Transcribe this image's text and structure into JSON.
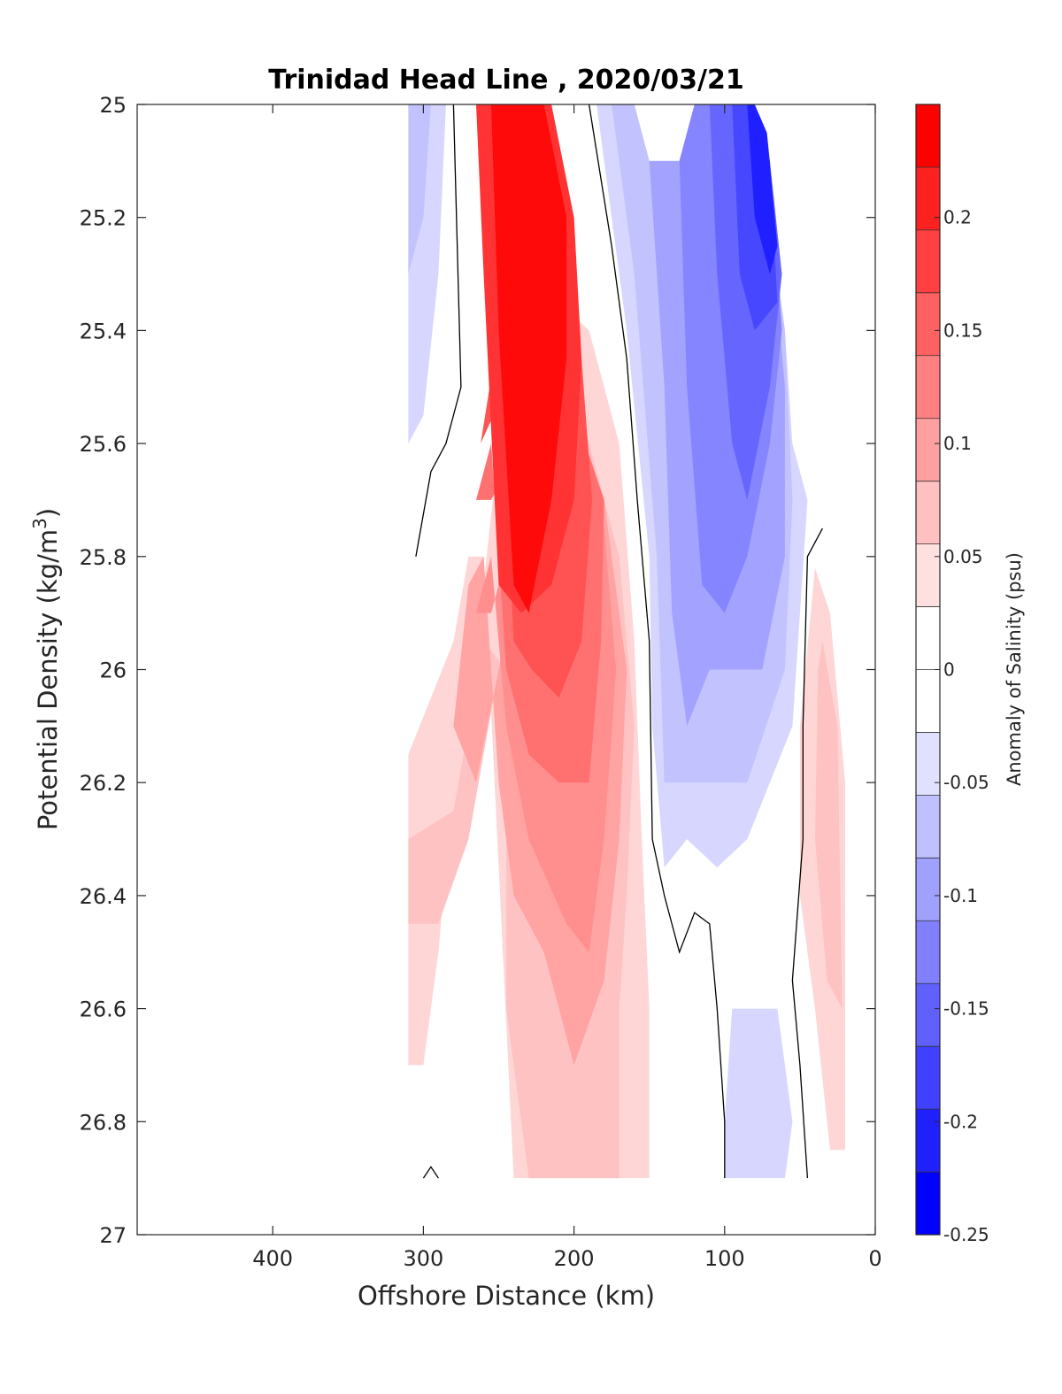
{
  "chart_data": {
    "type": "contour",
    "title": "Trinidad Head Line , 2020/03/21",
    "xlabel": "Offshore Distance (km)",
    "ylabel_main": "Potential Density (kg/m",
    "ylabel_sup": "3",
    "ylabel_close": ")",
    "colorbar_label": "Anomaly of Salinity (psu)",
    "x_reversed": true,
    "xlim": [
      0,
      490
    ],
    "ylim": [
      25,
      27
    ],
    "y_reversed": true,
    "x_ticks": [
      400,
      300,
      200,
      100,
      0
    ],
    "x_tick_labels": [
      "400",
      "300",
      "200",
      "100",
      "0"
    ],
    "y_ticks": [
      25,
      25.2,
      25.4,
      25.6,
      25.8,
      26,
      26.2,
      26.4,
      26.6,
      26.8,
      27
    ],
    "y_tick_labels": [
      "25",
      "25.2",
      "25.4",
      "25.6",
      "25.8",
      "26",
      "26.2",
      "26.4",
      "26.6",
      "26.8",
      "27"
    ],
    "colorbar_range": [
      -0.25,
      0.25
    ],
    "colorbar_ticks": [
      0.2,
      0.15,
      0.1,
      0.05,
      0,
      -0.05,
      -0.1,
      -0.15,
      -0.2,
      -0.25
    ],
    "colorbar_tick_labels": [
      "0.2",
      "0.15",
      "0.1",
      "0.05",
      "0",
      "-0.05",
      "-0.1",
      "-0.15",
      "-0.2",
      "-0.25"
    ],
    "colorbar_colors": [
      "#ff0000",
      "#ff2020",
      "#ff4040",
      "#ff6060",
      "#ff8080",
      "#ffa0a0",
      "#ffc0c0",
      "#ffe0e0",
      "#ffffff",
      "#ffffff",
      "#e0e0ff",
      "#c0c0ff",
      "#a0a0ff",
      "#8080ff",
      "#6060ff",
      "#4040ff",
      "#2020ff",
      "#0000ff"
    ],
    "regions": [
      {
        "anomaly": 0.04,
        "points": [
          [
            310,
            26.7
          ],
          [
            310,
            26.15
          ],
          [
            280,
            25.95
          ],
          [
            270,
            25.8
          ],
          [
            260,
            25.8
          ],
          [
            240,
            26.9
          ],
          [
            150,
            26.9
          ],
          [
            150,
            26.6
          ],
          [
            155,
            26.3
          ],
          [
            160,
            25.95
          ],
          [
            170,
            25.6
          ],
          [
            190,
            25.4
          ],
          [
            230,
            25.3
          ],
          [
            250,
            25.6
          ],
          [
            270,
            26.1
          ],
          [
            285,
            26.35
          ],
          [
            290,
            26.5
          ],
          [
            300,
            26.7
          ]
        ]
      },
      {
        "anomaly": 0.04,
        "points": [
          [
            40,
            25.82
          ],
          [
            30,
            25.9
          ],
          [
            20,
            26.2
          ],
          [
            20,
            26.85
          ],
          [
            30,
            26.85
          ],
          [
            40,
            26.6
          ],
          [
            50,
            26.4
          ],
          [
            50,
            26.1
          ]
        ]
      },
      {
        "anomaly": 0.06,
        "points": [
          [
            310,
            26.3
          ],
          [
            280,
            26.25
          ],
          [
            270,
            26.1
          ],
          [
            260,
            25.95
          ],
          [
            245,
            26.0
          ],
          [
            245,
            26.6
          ],
          [
            230,
            26.9
          ],
          [
            170,
            26.9
          ],
          [
            170,
            26.6
          ],
          [
            165,
            26.4
          ],
          [
            160,
            26.1
          ],
          [
            170,
            25.8
          ],
          [
            200,
            25.5
          ],
          [
            230,
            25.6
          ],
          [
            250,
            26.0
          ],
          [
            270,
            26.3
          ],
          [
            290,
            26.45
          ],
          [
            310,
            26.45
          ]
        ]
      },
      {
        "anomaly": 0.06,
        "points": [
          [
            35,
            25.95
          ],
          [
            25,
            26.1
          ],
          [
            22,
            26.6
          ],
          [
            32,
            26.55
          ],
          [
            40,
            26.3
          ],
          [
            38,
            26.0
          ]
        ]
      },
      {
        "anomaly": 0.09,
        "points": [
          [
            280,
            26.1
          ],
          [
            270,
            25.85
          ],
          [
            260,
            25.8
          ],
          [
            250,
            26.2
          ],
          [
            240,
            26.4
          ],
          [
            220,
            26.5
          ],
          [
            200,
            26.7
          ],
          [
            180,
            26.55
          ],
          [
            170,
            26.3
          ],
          [
            165,
            26.0
          ],
          [
            180,
            25.7
          ],
          [
            200,
            25.55
          ],
          [
            230,
            25.7
          ],
          [
            250,
            26.0
          ],
          [
            265,
            26.2
          ]
        ]
      },
      {
        "anomaly": 0.11,
        "points": [
          [
            265,
            25.9
          ],
          [
            255,
            25.8
          ],
          [
            245,
            26.1
          ],
          [
            230,
            26.3
          ],
          [
            205,
            26.45
          ],
          [
            190,
            26.5
          ],
          [
            180,
            26.3
          ],
          [
            172,
            26.0
          ],
          [
            180,
            25.75
          ],
          [
            205,
            25.55
          ],
          [
            235,
            25.7
          ],
          [
            255,
            25.9
          ]
        ]
      },
      {
        "anomaly": 0.14,
        "points": [
          [
            265,
            25.7
          ],
          [
            255,
            25.6
          ],
          [
            245,
            26.0
          ],
          [
            230,
            26.15
          ],
          [
            210,
            26.2
          ],
          [
            190,
            26.2
          ],
          [
            182,
            25.95
          ],
          [
            180,
            25.7
          ],
          [
            205,
            25.5
          ],
          [
            235,
            25.6
          ],
          [
            255,
            25.7
          ]
        ]
      },
      {
        "anomaly": 0.17,
        "points": [
          [
            262,
            25.6
          ],
          [
            250,
            25.4
          ],
          [
            240,
            25.95
          ],
          [
            228,
            26.0
          ],
          [
            210,
            26.05
          ],
          [
            195,
            25.95
          ],
          [
            188,
            25.7
          ],
          [
            195,
            25.45
          ],
          [
            220,
            25.4
          ],
          [
            245,
            25.5
          ]
        ]
      },
      {
        "anomaly": 0.2,
        "points": [
          [
            265,
            25.0
          ],
          [
            260,
            25.3
          ],
          [
            250,
            25.85
          ],
          [
            235,
            25.9
          ],
          [
            215,
            25.85
          ],
          [
            200,
            25.7
          ],
          [
            195,
            25.45
          ],
          [
            200,
            25.2
          ],
          [
            215,
            25.0
          ]
        ]
      },
      {
        "anomaly": 0.24,
        "points": [
          [
            255,
            25.0
          ],
          [
            250,
            25.4
          ],
          [
            240,
            25.85
          ],
          [
            230,
            25.9
          ],
          [
            215,
            25.7
          ],
          [
            205,
            25.45
          ],
          [
            205,
            25.2
          ],
          [
            220,
            25.0
          ]
        ]
      },
      {
        "anomaly": -0.04,
        "points": [
          [
            310,
            25.0
          ],
          [
            310,
            25.6
          ],
          [
            300,
            25.55
          ],
          [
            290,
            25.3
          ],
          [
            285,
            25.0
          ]
        ]
      },
      {
        "anomaly": -0.06,
        "points": [
          [
            310,
            25.0
          ],
          [
            310,
            25.3
          ],
          [
            300,
            25.2
          ],
          [
            295,
            25.0
          ]
        ]
      },
      {
        "anomaly": -0.04,
        "points": [
          [
            185,
            25.0
          ],
          [
            165,
            25.4
          ],
          [
            150,
            25.8
          ],
          [
            148,
            26.1
          ],
          [
            140,
            26.35
          ],
          [
            125,
            26.3
          ],
          [
            105,
            26.35
          ],
          [
            85,
            26.3
          ],
          [
            55,
            26.1
          ],
          [
            45,
            25.7
          ],
          [
            55,
            25.6
          ],
          [
            60,
            25.4
          ],
          [
            75,
            25.1
          ],
          [
            90,
            25.0
          ],
          [
            120,
            25.0
          ],
          [
            130,
            25.1
          ],
          [
            150,
            25.1
          ],
          [
            160,
            25.0
          ]
        ]
      },
      {
        "anomaly": -0.06,
        "points": [
          [
            175,
            25.0
          ],
          [
            160,
            25.3
          ],
          [
            145,
            25.8
          ],
          [
            140,
            26.2
          ],
          [
            125,
            26.2
          ],
          [
            105,
            26.2
          ],
          [
            85,
            26.2
          ],
          [
            60,
            26.0
          ],
          [
            55,
            25.7
          ],
          [
            60,
            25.4
          ],
          [
            75,
            25.1
          ],
          [
            90,
            25.0
          ],
          [
            120,
            25.0
          ],
          [
            130,
            25.1
          ],
          [
            150,
            25.1
          ],
          [
            160,
            25.0
          ]
        ]
      },
      {
        "anomaly": -0.09,
        "points": [
          [
            150,
            25.1
          ],
          [
            140,
            25.5
          ],
          [
            135,
            25.9
          ],
          [
            125,
            26.1
          ],
          [
            110,
            26.0
          ],
          [
            95,
            26.0
          ],
          [
            75,
            26.0
          ],
          [
            60,
            25.8
          ],
          [
            60,
            25.5
          ],
          [
            70,
            25.2
          ],
          [
            85,
            25.0
          ],
          [
            120,
            25.0
          ],
          [
            130,
            25.1
          ]
        ]
      },
      {
        "anomaly": -0.12,
        "points": [
          [
            130,
            25.1
          ],
          [
            125,
            25.5
          ],
          [
            115,
            25.85
          ],
          [
            100,
            25.9
          ],
          [
            85,
            25.8
          ],
          [
            70,
            25.6
          ],
          [
            62,
            25.4
          ],
          [
            70,
            25.1
          ],
          [
            85,
            25.0
          ],
          [
            120,
            25.0
          ]
        ]
      },
      {
        "anomaly": -0.15,
        "points": [
          [
            110,
            25.0
          ],
          [
            105,
            25.3
          ],
          [
            95,
            25.6
          ],
          [
            85,
            25.7
          ],
          [
            70,
            25.5
          ],
          [
            62,
            25.3
          ],
          [
            72,
            25.05
          ],
          [
            85,
            25.0
          ]
        ]
      },
      {
        "anomaly": -0.18,
        "points": [
          [
            95,
            25.0
          ],
          [
            90,
            25.3
          ],
          [
            80,
            25.4
          ],
          [
            65,
            25.35
          ],
          [
            70,
            25.1
          ],
          [
            80,
            25.0
          ]
        ]
      },
      {
        "anomaly": -0.22,
        "points": [
          [
            85,
            25.0
          ],
          [
            80,
            25.2
          ],
          [
            70,
            25.3
          ],
          [
            65,
            25.25
          ],
          [
            72,
            25.05
          ],
          [
            80,
            25.0
          ]
        ]
      },
      {
        "anomaly": -0.04,
        "points": [
          [
            95,
            26.6
          ],
          [
            85,
            26.6
          ],
          [
            65,
            26.6
          ],
          [
            55,
            26.8
          ],
          [
            60,
            26.9
          ],
          [
            100,
            26.9
          ],
          [
            100,
            26.8
          ]
        ]
      }
    ],
    "zero_contours": [
      [
        [
          280,
          25.0
        ],
        [
          275,
          25.5
        ],
        [
          285,
          25.6
        ],
        [
          295,
          25.65
        ],
        [
          305,
          25.8
        ]
      ],
      [
        [
          190,
          25.0
        ],
        [
          175,
          25.25
        ],
        [
          165,
          25.45
        ],
        [
          158,
          25.7
        ],
        [
          150,
          25.95
        ],
        [
          148,
          26.3
        ],
        [
          140,
          26.4
        ],
        [
          130,
          26.5
        ],
        [
          120,
          26.43
        ],
        [
          110,
          26.45
        ],
        [
          105,
          26.6
        ],
        [
          100,
          26.8
        ],
        [
          100,
          26.9
        ]
      ],
      [
        [
          35,
          25.75
        ],
        [
          45,
          25.8
        ],
        [
          48,
          26.1
        ],
        [
          48,
          26.3
        ],
        [
          55,
          26.55
        ],
        [
          50,
          26.7
        ],
        [
          45,
          26.9
        ]
      ],
      [
        [
          300,
          26.9
        ],
        [
          295,
          26.88
        ],
        [
          290,
          26.9
        ]
      ]
    ]
  }
}
